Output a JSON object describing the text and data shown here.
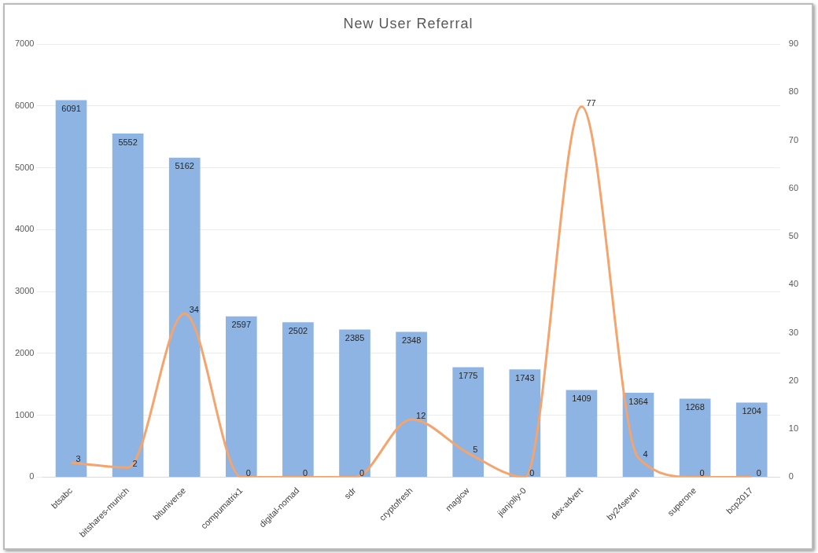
{
  "chart_data": {
    "type": "bar",
    "title": "New User Referral",
    "categories": [
      "btsabc",
      "bitshares-munich",
      "bituniverse",
      "compumatrix1",
      "digital-nomad",
      "sdr",
      "cryptofresh",
      "magicw",
      "jianjolly-0",
      "dex-advert",
      "by24seven",
      "superone",
      "bcp2017"
    ],
    "series": [
      {
        "color": "#8db4e2",
        "values": [
          6091,
          5552,
          5162,
          2597,
          2502,
          2385,
          2348,
          1775,
          1743,
          1409,
          1364,
          1268,
          1204
        ]
      },
      {
        "type": "line",
        "axis": "y2",
        "color": "#f4a46c",
        "values": [
          3,
          2,
          34,
          0,
          0,
          0,
          12,
          5,
          0,
          77,
          4,
          0,
          0
        ]
      }
    ],
    "ylim": [
      0,
      7000
    ],
    "yticks": [
      0,
      1000,
      2000,
      3000,
      4000,
      5000,
      6000,
      7000
    ],
    "y2lim": [
      0,
      90
    ],
    "y2ticks": [
      0,
      10,
      20,
      30,
      40,
      50,
      60,
      70,
      80,
      90
    ],
    "grid": "y",
    "legend": false,
    "marker": "none",
    "line_style": "solid",
    "data_labels": true
  }
}
